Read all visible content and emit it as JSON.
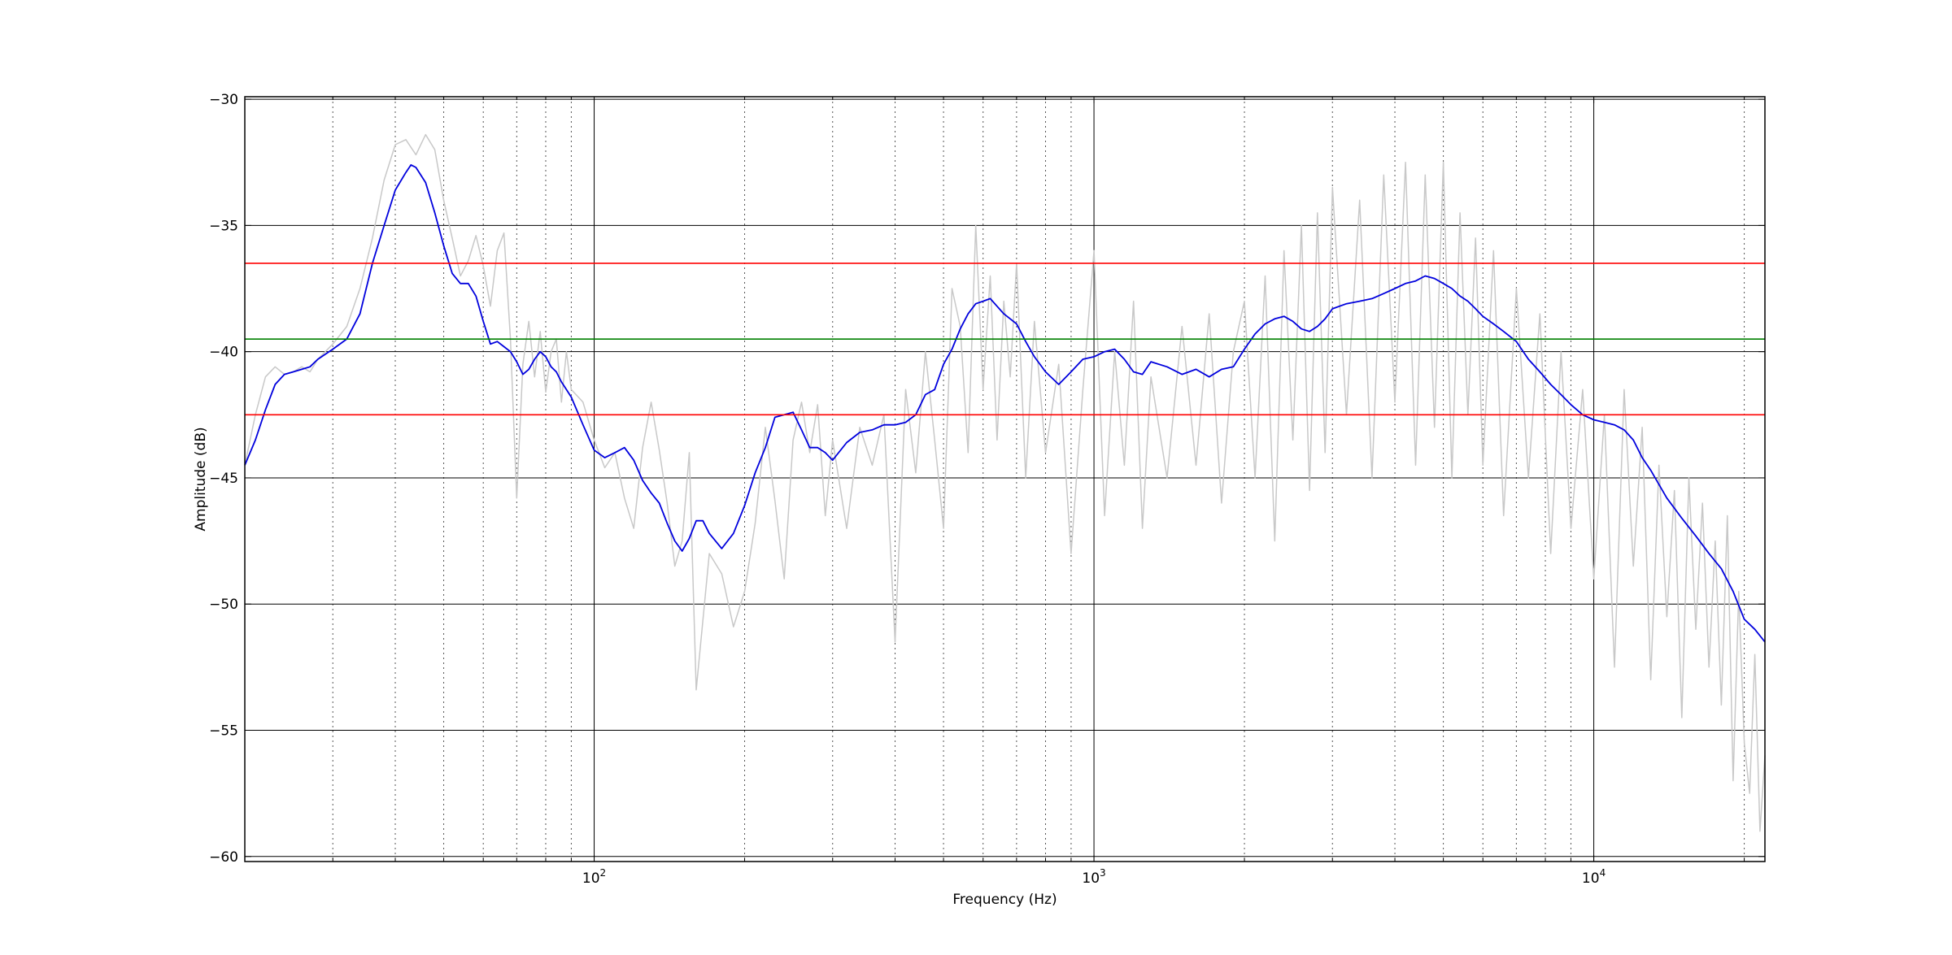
{
  "chart_data": {
    "type": "line",
    "title": "",
    "xlabel": "Frequency (Hz)",
    "ylabel": "Amplitude (dB)",
    "xscale": "log",
    "xlim": [
      20,
      22000
    ],
    "ylim": [
      -60.2,
      -29.9
    ],
    "grid": true,
    "legend": "none",
    "x_major_ticks": [
      {
        "value": 100,
        "base": "10",
        "exp": "2"
      },
      {
        "value": 1000,
        "base": "10",
        "exp": "3"
      },
      {
        "value": 10000,
        "base": "10",
        "exp": "4"
      }
    ],
    "y_ticks": [
      {
        "value": -30,
        "label": "−30"
      },
      {
        "value": -35,
        "label": "−35"
      },
      {
        "value": -40,
        "label": "−40"
      },
      {
        "value": -45,
        "label": "−45"
      },
      {
        "value": -50,
        "label": "−50"
      },
      {
        "value": -55,
        "label": "−55"
      },
      {
        "value": -60,
        "label": "−60"
      }
    ],
    "reference_lines": [
      {
        "value": -36.5,
        "color": "#ff0000"
      },
      {
        "value": -39.5,
        "color": "#008000"
      },
      {
        "value": -42.5,
        "color": "#ff0000"
      }
    ],
    "series": [
      {
        "style": "raw",
        "color": "#c8c8c8",
        "x": [
          20,
          21,
          22,
          23,
          24,
          25,
          26,
          27,
          28,
          30,
          32,
          34,
          36,
          38,
          40,
          42,
          44,
          46,
          48,
          50,
          52,
          54,
          56,
          58,
          60,
          62,
          64,
          66,
          68,
          70,
          72,
          74,
          76,
          78,
          80,
          82,
          84,
          86,
          88,
          90,
          95,
          100,
          105,
          110,
          115,
          120,
          125,
          130,
          135,
          140,
          145,
          150,
          155,
          160,
          170,
          180,
          190,
          200,
          210,
          220,
          230,
          240,
          250,
          260,
          270,
          280,
          290,
          300,
          320,
          340,
          360,
          380,
          400,
          420,
          440,
          460,
          480,
          500,
          520,
          540,
          560,
          580,
          600,
          620,
          640,
          660,
          680,
          700,
          730,
          760,
          800,
          850,
          900,
          950,
          1000,
          1050,
          1100,
          1150,
          1200,
          1250,
          1300,
          1400,
          1500,
          1600,
          1700,
          1800,
          1900,
          2000,
          2100,
          2200,
          2300,
          2400,
          2500,
          2600,
          2700,
          2800,
          2900,
          3000,
          3200,
          3400,
          3600,
          3800,
          4000,
          4200,
          4400,
          4600,
          4800,
          5000,
          5200,
          5400,
          5600,
          5800,
          6000,
          6300,
          6600,
          7000,
          7400,
          7800,
          8200,
          8600,
          9000,
          9500,
          10000,
          10500,
          11000,
          11500,
          12000,
          12500,
          13000,
          13500,
          14000,
          14500,
          15000,
          15500,
          16000,
          16500,
          17000,
          17500,
          18000,
          18500,
          19000,
          19500,
          20000,
          20500,
          21000,
          21500,
          22000
        ],
        "y": [
          -44.5,
          -42.5,
          -41.0,
          -40.6,
          -40.9,
          -40.8,
          -40.6,
          -40.8,
          -40.3,
          -39.7,
          -39.0,
          -37.5,
          -35.5,
          -33.2,
          -31.8,
          -31.6,
          -32.2,
          -31.4,
          -32.0,
          -34.0,
          -35.5,
          -37.0,
          -36.4,
          -35.4,
          -36.6,
          -38.2,
          -36.0,
          -35.3,
          -39.5,
          -45.8,
          -40.5,
          -38.8,
          -41.0,
          -39.2,
          -41.6,
          -40.0,
          -39.5,
          -42.0,
          -40.0,
          -41.5,
          -42.0,
          -43.5,
          -44.6,
          -44.0,
          -45.8,
          -47.0,
          -43.8,
          -42.0,
          -43.9,
          -46.0,
          -48.5,
          -47.5,
          -44.0,
          -53.4,
          -48.0,
          -48.8,
          -50.9,
          -49.5,
          -46.8,
          -43.0,
          -45.9,
          -49.0,
          -43.5,
          -42.0,
          -44.0,
          -42.1,
          -46.5,
          -43.5,
          -47.0,
          -43.0,
          -44.5,
          -42.5,
          -51.5,
          -41.5,
          -44.8,
          -40.0,
          -43.5,
          -47.0,
          -37.5,
          -39.0,
          -44.0,
          -35.0,
          -41.5,
          -37.0,
          -43.5,
          -38.0,
          -41.0,
          -36.5,
          -45.0,
          -38.8,
          -44.0,
          -40.5,
          -48.0,
          -41.5,
          -36.0,
          -46.5,
          -40.0,
          -44.5,
          -38.0,
          -47.0,
          -41.0,
          -45.0,
          -39.0,
          -44.5,
          -38.5,
          -46.0,
          -40.0,
          -38.0,
          -45.0,
          -37.0,
          -47.5,
          -36.0,
          -43.5,
          -35.0,
          -45.5,
          -34.5,
          -44.0,
          -33.5,
          -42.5,
          -34.0,
          -45.0,
          -33.0,
          -42.0,
          -32.5,
          -44.5,
          -33.0,
          -43.0,
          -32.5,
          -45.0,
          -34.5,
          -42.5,
          -35.5,
          -44.5,
          -36.0,
          -46.5,
          -37.5,
          -45.0,
          -38.5,
          -48.0,
          -40.0,
          -47.0,
          -41.5,
          -49.0,
          -42.5,
          -52.5,
          -41.5,
          -48.5,
          -43.0,
          -53.0,
          -44.5,
          -50.5,
          -45.5,
          -54.5,
          -45.0,
          -51.0,
          -46.0,
          -52.5,
          -47.5,
          -54.0,
          -46.5,
          -57.0,
          -49.5,
          -55.5,
          -57.5,
          -52.0,
          -59.0,
          -56.0
        ]
      },
      {
        "style": "smoothed",
        "color": "#0000dd",
        "x": [
          20,
          21,
          22,
          23,
          24,
          25,
          26,
          27,
          28,
          30,
          32,
          34,
          36,
          38,
          40,
          42,
          43,
          44,
          46,
          48,
          50,
          52,
          54,
          56,
          58,
          60,
          62,
          64,
          66,
          68,
          70,
          72,
          74,
          76,
          78,
          80,
          82,
          84,
          86,
          88,
          90,
          95,
          100,
          105,
          110,
          115,
          120,
          125,
          130,
          135,
          140,
          145,
          150,
          155,
          160,
          165,
          170,
          180,
          190,
          200,
          210,
          220,
          230,
          240,
          250,
          260,
          270,
          280,
          290,
          300,
          320,
          340,
          360,
          380,
          400,
          420,
          440,
          460,
          480,
          500,
          520,
          540,
          560,
          580,
          600,
          620,
          640,
          660,
          680,
          700,
          730,
          760,
          800,
          850,
          900,
          950,
          1000,
          1050,
          1100,
          1150,
          1200,
          1250,
          1300,
          1400,
          1500,
          1600,
          1700,
          1800,
          1900,
          2000,
          2100,
          2200,
          2300,
          2400,
          2500,
          2600,
          2700,
          2800,
          2900,
          3000,
          3200,
          3400,
          3600,
          3800,
          4000,
          4200,
          4400,
          4600,
          4800,
          5000,
          5200,
          5400,
          5600,
          5800,
          6000,
          6300,
          6600,
          7000,
          7400,
          7800,
          8200,
          8600,
          9000,
          9500,
          10000,
          10500,
          11000,
          11500,
          12000,
          12500,
          13000,
          14000,
          15000,
          16000,
          17000,
          18000,
          19000,
          20000,
          21000,
          22000
        ],
        "y": [
          -44.5,
          -43.5,
          -42.3,
          -41.3,
          -40.9,
          -40.8,
          -40.7,
          -40.6,
          -40.3,
          -39.9,
          -39.5,
          -38.5,
          -36.5,
          -35.0,
          -33.6,
          -32.9,
          -32.6,
          -32.7,
          -33.3,
          -34.5,
          -35.8,
          -36.9,
          -37.3,
          -37.3,
          -37.8,
          -38.8,
          -39.7,
          -39.6,
          -39.8,
          -40.0,
          -40.4,
          -40.9,
          -40.7,
          -40.3,
          -40.0,
          -40.2,
          -40.6,
          -40.8,
          -41.2,
          -41.5,
          -41.8,
          -42.9,
          -43.9,
          -44.2,
          -44.0,
          -43.8,
          -44.3,
          -45.1,
          -45.6,
          -46.0,
          -46.8,
          -47.5,
          -47.9,
          -47.4,
          -46.7,
          -46.7,
          -47.2,
          -47.8,
          -47.2,
          -46.1,
          -44.8,
          -43.8,
          -42.6,
          -42.5,
          -42.4,
          -43.1,
          -43.8,
          -43.8,
          -44.0,
          -44.3,
          -43.6,
          -43.2,
          -43.1,
          -42.9,
          -42.9,
          -42.8,
          -42.5,
          -41.7,
          -41.5,
          -40.5,
          -39.9,
          -39.1,
          -38.5,
          -38.1,
          -38.0,
          -37.9,
          -38.2,
          -38.5,
          -38.7,
          -38.9,
          -39.6,
          -40.2,
          -40.8,
          -41.3,
          -40.8,
          -40.3,
          -40.2,
          -40.0,
          -39.9,
          -40.3,
          -40.8,
          -40.9,
          -40.4,
          -40.6,
          -40.9,
          -40.7,
          -41.0,
          -40.7,
          -40.6,
          -39.9,
          -39.3,
          -38.9,
          -38.7,
          -38.6,
          -38.8,
          -39.1,
          -39.2,
          -39.0,
          -38.7,
          -38.3,
          -38.1,
          -38.0,
          -37.9,
          -37.7,
          -37.5,
          -37.3,
          -37.2,
          -37.0,
          -37.1,
          -37.3,
          -37.5,
          -37.8,
          -38.0,
          -38.3,
          -38.6,
          -38.9,
          -39.2,
          -39.6,
          -40.3,
          -40.8,
          -41.3,
          -41.7,
          -42.1,
          -42.5,
          -42.7,
          -42.8,
          -42.9,
          -43.1,
          -43.5,
          -44.2,
          -44.7,
          -45.8,
          -46.6,
          -47.3,
          -48.0,
          -48.6,
          -49.5,
          -50.6,
          -51.0,
          -51.5
        ]
      }
    ]
  }
}
